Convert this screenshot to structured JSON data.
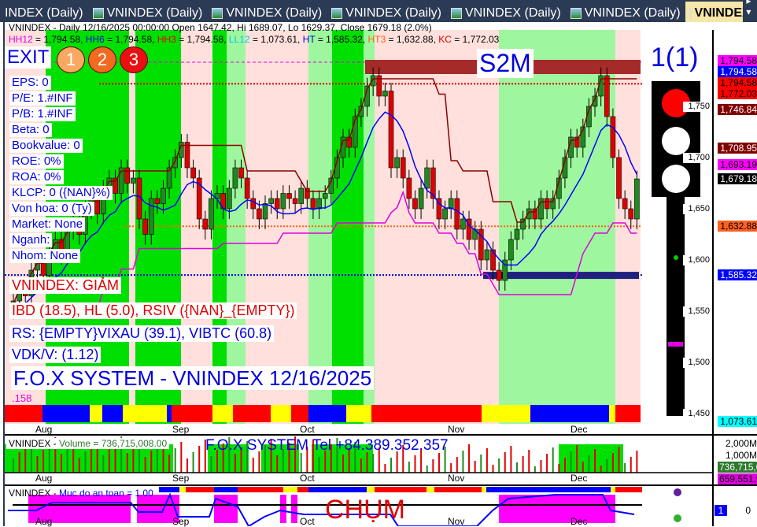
{
  "tabs": [
    {
      "label": "INDEX (Daily)"
    },
    {
      "label": "VNINDEX (Daily)"
    },
    {
      "label": "VNINDEX (Daily)"
    },
    {
      "label": "VNINDEX (Daily)"
    },
    {
      "label": "VNINDEX (Daily)"
    },
    {
      "label": "VNINDEX (Daily)"
    },
    {
      "label": "VNINDEX (Dai",
      "active": true
    }
  ],
  "tab_nav": "◂ ▸ ▾",
  "header": {
    "line1": "VNINDEX - Daily 12/16/2025 00:00:00 Open 1647.42, Hi 1689.07, Lo 1629.37, Close 1679.18 (2.0%)",
    "levels": [
      {
        "k": "HH12",
        "v": " = 1,794.58, ",
        "c": "#e000e0"
      },
      {
        "k": "HH6",
        "v": " = 1,794.58, ",
        "c": "#0000e0"
      },
      {
        "k": "HH3",
        "v": " = 1,794.58, ",
        "c": "#e00000"
      },
      {
        "k": "LL12",
        "v": " = 1,073.61, ",
        "c": "#00c8e0"
      },
      {
        "k": "HT",
        "v": " = 1,585.32, ",
        "c": "#0000e0"
      },
      {
        "k": "HT3",
        "v": " = 1,632.88, ",
        "c": "#ff6010"
      },
      {
        "k": "KC",
        "v": " = 1,772.03",
        "c": "#e00000"
      }
    ]
  },
  "exit": {
    "label": "EXIT",
    "buttons": [
      "1",
      "2",
      "3"
    ]
  },
  "s2m": "S2M",
  "signal_count": "1(1)",
  "info": [
    "EPS: 0",
    "P/E: 1.#INF",
    "P/B: 1.#INF",
    "Beta: 0",
    "Bookvalue: 0",
    "ROE: 0%",
    "ROA: 0%",
    "KLCP: 0 ({NAN}%)",
    "Von hoa: 0 (Ty)",
    "Market: None",
    "Nganh:",
    "Nhom: None"
  ],
  "status": "VNINDEX: GIẢM",
  "ibd": "IBD (18.5), HL (5.0), RSIV ({NAN}_{EMPTY})",
  "rs": "RS: {EMPTY}VIXAU (39.1), VIBTC (60.8)",
  "vdk": "VDK/V:  (1.12)",
  "title": "F.O.X SYSTEM - VNINDEX 12/16/2025",
  "small": ".158",
  "months": [
    "Aug",
    "Sep",
    "Oct",
    "Nov",
    "Dec"
  ],
  "volume": {
    "label": "VNINDEX - ",
    "name": "Volume = 736,715,008.00",
    "tel": "F.O.X SYSTEM Tel +84.389.352.357",
    "ticks": [
      "2,000M",
      "1,000M"
    ],
    "badges": [
      {
        "t": "736,715,0",
        "c": "#2d7a2d"
      },
      {
        "t": "659,551,9",
        "c": "#e000e0"
      }
    ]
  },
  "safety": {
    "label": "VNINDEX - ",
    "name": "Muc do an toan = 1.00",
    "chum": "CHỤM",
    "badge": "1",
    "tick": "0"
  },
  "colors": {
    "up": "#1f8a1f",
    "down": "#e00000",
    "green": "#00e000",
    "lightgreen": "#9ef79e",
    "pink": "#ffe0dc",
    "cyan": "#00ffff"
  },
  "chart_data": {
    "type": "candlestick",
    "symbol": "VNINDEX",
    "interval": "Daily",
    "last": {
      "date": "12/16/2025",
      "open": 1647.42,
      "high": 1689.07,
      "low": 1629.37,
      "close": 1679.18,
      "change_pct": 2.0
    },
    "x_ticks": [
      "Aug",
      "Sep",
      "Oct",
      "Nov",
      "Dec"
    ],
    "ylim": [
      1440,
      1810
    ],
    "y_ticks": [
      1450,
      1500,
      1550,
      1600,
      1650,
      1700,
      1750
    ],
    "closes": [
      1560,
      1575,
      1565,
      1590,
      1600,
      1585,
      1610,
      1620,
      1605,
      1630,
      1640,
      1625,
      1650,
      1660,
      1645,
      1670,
      1680,
      1665,
      1690,
      1675,
      1680,
      1640,
      1625,
      1660,
      1655,
      1670,
      1690,
      1700,
      1715,
      1690,
      1680,
      1640,
      1630,
      1660,
      1665,
      1650,
      1670,
      1690,
      1680,
      1660,
      1650,
      1640,
      1655,
      1660,
      1650,
      1665,
      1660,
      1655,
      1670,
      1660,
      1650,
      1660,
      1665,
      1680,
      1700,
      1720,
      1710,
      1740,
      1750,
      1770,
      1780,
      1760,
      1765,
      1690,
      1700,
      1680,
      1660,
      1650,
      1670,
      1690,
      1660,
      1640,
      1650,
      1660,
      1630,
      1640,
      1620,
      1630,
      1600,
      1610,
      1590,
      1580,
      1600,
      1620,
      1630,
      1640,
      1650,
      1640,
      1660,
      1650,
      1660,
      1680,
      1700,
      1720,
      1710,
      1730,
      1750,
      1760,
      1780,
      1740,
      1700,
      1660,
      1650,
      1640,
      1679.18
    ],
    "price_labels": [
      {
        "v": 1794.58,
        "t": "1,794.58",
        "bg": "#ff00ff",
        "fg": "#000"
      },
      {
        "v": 1794.58,
        "t": "1,794.58",
        "bg": "#0000ff",
        "fg": "#fff"
      },
      {
        "v": 1794.58,
        "t": "1,794.58",
        "bg": "#ff0000",
        "fg": "#000"
      },
      {
        "v": 1772.03,
        "t": "1,772.03",
        "bg": "#ff0000",
        "fg": "#000"
      },
      {
        "v": 1746.84,
        "t": "1,746.84",
        "bg": "#800000",
        "fg": "#fff"
      },
      {
        "v": 1708.95,
        "t": "1,708.95",
        "bg": "#800000",
        "fg": "#fff"
      },
      {
        "v": 1693.19,
        "t": "1,693.19",
        "bg": "#ff00ff",
        "fg": "#000"
      },
      {
        "v": 1679.18,
        "t": "1,679.18",
        "bg": "#000",
        "fg": "#fff"
      },
      {
        "v": 1632.88,
        "t": "1,632.88",
        "bg": "#ff6020",
        "fg": "#000"
      },
      {
        "v": 1585.32,
        "t": "1,585.32",
        "bg": "#0000ff",
        "fg": "#fff"
      },
      {
        "v": 1073.61,
        "t": "1,073.61",
        "bg": "#00ffff",
        "fg": "#000"
      }
    ]
  }
}
